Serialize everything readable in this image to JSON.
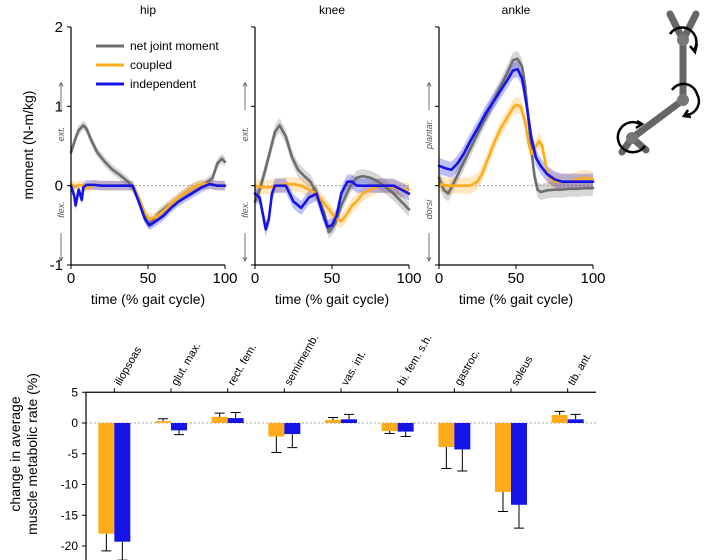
{
  "chart_data": [
    {
      "type": "line",
      "panel": "hip",
      "title": "hip",
      "xlabel": "time (% gait cycle)",
      "ylabel": "moment (N-m/kg)",
      "xlim": [
        0,
        100
      ],
      "ylim": [
        -1,
        2
      ],
      "x_ticks": [
        "0",
        "50",
        "100"
      ],
      "y_ticks": [
        "-1",
        "0",
        "1",
        "2"
      ],
      "direction_labels": {
        "positive": "ext.",
        "negative": "flex."
      },
      "legend": [
        "net joint moment",
        "coupled",
        "independent"
      ],
      "series": [
        {
          "name": "net joint moment",
          "color": "#6e6e6e",
          "x": [
            0,
            3,
            5,
            8,
            10,
            13,
            17,
            22,
            27,
            32,
            37,
            42,
            46,
            50,
            53,
            57,
            62,
            67,
            72,
            77,
            82,
            87,
            92,
            95,
            98,
            100
          ],
          "y": [
            0.42,
            0.6,
            0.7,
            0.76,
            0.72,
            0.58,
            0.42,
            0.3,
            0.2,
            0.13,
            0.05,
            -0.08,
            -0.3,
            -0.48,
            -0.45,
            -0.35,
            -0.27,
            -0.2,
            -0.12,
            -0.05,
            0.0,
            0.02,
            0.1,
            0.28,
            0.34,
            0.3
          ],
          "band": 0.06
        },
        {
          "name": "coupled",
          "color": "#ffab1a",
          "x": [
            0,
            3,
            5,
            8,
            10,
            15,
            20,
            30,
            40,
            44,
            48,
            51,
            55,
            60,
            65,
            70,
            75,
            80,
            85,
            90,
            95,
            100
          ],
          "y": [
            0.02,
            -0.02,
            0.01,
            0.0,
            -0.03,
            0.01,
            0.0,
            0.0,
            0.0,
            -0.15,
            -0.35,
            -0.42,
            -0.4,
            -0.32,
            -0.23,
            -0.15,
            -0.08,
            -0.02,
            0.02,
            0.02,
            0.0,
            0.0
          ],
          "band": 0.06
        },
        {
          "name": "independent",
          "color": "#1414e6",
          "x": [
            0,
            2,
            3,
            5,
            7,
            8,
            10,
            15,
            20,
            30,
            40,
            44,
            48,
            51,
            55,
            60,
            65,
            70,
            75,
            80,
            85,
            90,
            95,
            100
          ],
          "y": [
            0.0,
            -0.12,
            -0.25,
            -0.05,
            -0.18,
            -0.02,
            0.01,
            0.01,
            0.0,
            0.0,
            0.0,
            -0.2,
            -0.42,
            -0.5,
            -0.45,
            -0.38,
            -0.28,
            -0.2,
            -0.14,
            -0.08,
            -0.02,
            0.02,
            0.0,
            0.0
          ],
          "band": 0.06
        }
      ]
    },
    {
      "type": "line",
      "panel": "knee",
      "title": "knee",
      "xlabel": "time (% gait cycle)",
      "xlim": [
        0,
        100
      ],
      "ylim": [
        -1,
        2
      ],
      "x_ticks": [
        "0",
        "50",
        "100"
      ],
      "direction_labels": {
        "positive": "ext.",
        "negative": "flex."
      },
      "series": [
        {
          "name": "net joint moment",
          "color": "#6e6e6e",
          "x": [
            0,
            3,
            6,
            10,
            13,
            16,
            20,
            24,
            28,
            32,
            36,
            40,
            45,
            48,
            52,
            56,
            62,
            66,
            70,
            75,
            80,
            85,
            90,
            95,
            100
          ],
          "y": [
            -0.2,
            -0.05,
            0.15,
            0.45,
            0.68,
            0.76,
            0.62,
            0.36,
            0.2,
            0.12,
            0.05,
            -0.1,
            -0.35,
            -0.58,
            -0.48,
            -0.25,
            0.0,
            0.1,
            0.12,
            0.1,
            0.05,
            -0.02,
            -0.1,
            -0.2,
            -0.3
          ],
          "band": 0.09
        },
        {
          "name": "coupled",
          "color": "#ffab1a",
          "x": [
            0,
            5,
            10,
            15,
            20,
            25,
            30,
            35,
            40,
            44,
            48,
            52,
            56,
            60,
            63,
            66,
            70,
            75,
            80,
            85,
            90,
            95,
            100
          ],
          "y": [
            0.0,
            -0.02,
            -0.02,
            0.0,
            0.02,
            0.02,
            0.0,
            -0.05,
            -0.1,
            -0.2,
            -0.3,
            -0.4,
            -0.45,
            -0.35,
            -0.25,
            -0.2,
            -0.1,
            -0.05,
            0.0,
            0.0,
            -0.02,
            -0.05,
            -0.05
          ],
          "band": 0.09
        },
        {
          "name": "independent",
          "color": "#1414e6",
          "x": [
            0,
            3,
            5,
            7,
            9,
            11,
            13,
            16,
            20,
            25,
            30,
            35,
            40,
            44,
            47,
            50,
            53,
            56,
            60,
            63,
            66,
            70,
            75,
            80,
            85,
            90,
            95,
            100
          ],
          "y": [
            -0.1,
            -0.15,
            -0.35,
            -0.55,
            -0.42,
            -0.1,
            0.0,
            0.0,
            0.0,
            -0.2,
            -0.28,
            -0.15,
            -0.1,
            -0.35,
            -0.52,
            -0.5,
            -0.38,
            -0.1,
            0.05,
            0.05,
            0.0,
            0.0,
            0.0,
            0.0,
            0.0,
            0.0,
            -0.05,
            -0.1
          ],
          "band": 0.09
        }
      ]
    },
    {
      "type": "line",
      "panel": "ankle",
      "title": "ankle",
      "xlabel": "time (% gait cycle)",
      "xlim": [
        0,
        100
      ],
      "ylim": [
        -1,
        2
      ],
      "x_ticks": [
        "0",
        "50",
        "100"
      ],
      "direction_labels": {
        "positive": "plantar.",
        "negative": "dorsi"
      },
      "series": [
        {
          "name": "net joint moment",
          "color": "#6e6e6e",
          "x": [
            0,
            3,
            6,
            10,
            15,
            20,
            25,
            30,
            35,
            40,
            45,
            48,
            51,
            54,
            56,
            58,
            60,
            62,
            64,
            66,
            70,
            75,
            80,
            85,
            90,
            95,
            100
          ],
          "y": [
            0.1,
            -0.05,
            -0.1,
            0.05,
            0.25,
            0.45,
            0.65,
            0.85,
            1.05,
            1.25,
            1.45,
            1.58,
            1.6,
            1.5,
            1.25,
            0.85,
            0.45,
            0.12,
            -0.05,
            -0.08,
            -0.06,
            -0.05,
            -0.05,
            -0.04,
            -0.04,
            -0.03,
            -0.03
          ],
          "band": 0.1
        },
        {
          "name": "coupled",
          "color": "#ffab1a",
          "x": [
            0,
            5,
            10,
            15,
            20,
            25,
            28,
            32,
            36,
            40,
            44,
            48,
            50,
            53,
            56,
            58,
            60,
            63,
            65,
            67,
            69,
            71,
            75,
            80,
            85,
            90,
            95,
            100
          ],
          "y": [
            0.02,
            0.0,
            0.0,
            0.0,
            0.0,
            0.05,
            0.15,
            0.35,
            0.55,
            0.72,
            0.85,
            0.98,
            1.02,
            1.0,
            0.8,
            0.55,
            0.4,
            0.5,
            0.56,
            0.5,
            0.3,
            0.12,
            0.05,
            0.05,
            0.05,
            0.08,
            0.1,
            0.08
          ],
          "band": 0.1
        },
        {
          "name": "independent",
          "color": "#1414e6",
          "x": [
            0,
            4,
            8,
            12,
            16,
            20,
            25,
            30,
            35,
            40,
            45,
            48,
            51,
            54,
            57,
            60,
            63,
            66,
            70,
            75,
            80,
            85,
            90,
            95,
            100
          ],
          "y": [
            0.25,
            0.22,
            0.2,
            0.28,
            0.4,
            0.55,
            0.72,
            0.9,
            1.05,
            1.2,
            1.35,
            1.45,
            1.47,
            1.35,
            1.0,
            0.6,
            0.35,
            0.25,
            0.15,
            0.08,
            0.05,
            0.05,
            0.05,
            0.05,
            0.05
          ],
          "band": 0.1
        }
      ]
    },
    {
      "type": "bar",
      "panel": "metabolic",
      "ylabel_lines": [
        "change in average",
        "muscle metabolic rate (%)"
      ],
      "ylim": [
        -25,
        5
      ],
      "y_ticks": [
        "5",
        "0",
        "-5",
        "-10",
        "-15",
        "-20",
        "-25"
      ],
      "categories": [
        "iliopsoas",
        "glut. max.",
        "rect. fem.",
        "semimemb.",
        "vas. int.",
        "bi. fem. s.h.",
        "gastroc.",
        "soleus",
        "tib. ant."
      ],
      "series": [
        {
          "name": "coupled",
          "color": "#ffab1a",
          "values": [
            -18.0,
            0.3,
            1.0,
            -2.2,
            0.5,
            -1.3,
            -3.9,
            -11.2,
            1.3
          ],
          "error": [
            2.8,
            0.4,
            0.6,
            2.6,
            0.4,
            0.4,
            3.5,
            3.2,
            0.6
          ]
        },
        {
          "name": "independent",
          "color": "#1414e6",
          "values": [
            -19.3,
            -1.2,
            0.8,
            -1.8,
            0.6,
            -1.4,
            -4.3,
            -13.3,
            0.6
          ],
          "error": [
            3.0,
            0.7,
            0.9,
            2.2,
            0.8,
            0.8,
            3.5,
            3.8,
            0.8
          ]
        }
      ]
    }
  ]
}
